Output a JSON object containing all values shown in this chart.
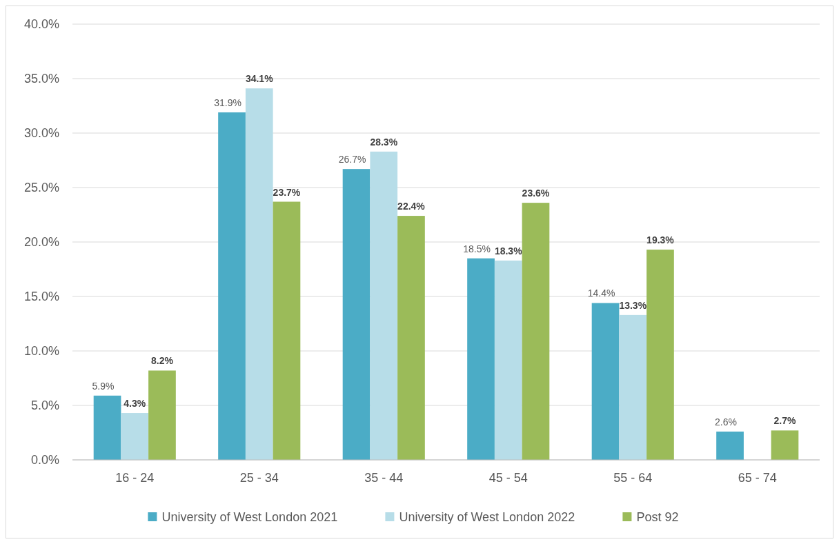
{
  "chart_data": {
    "type": "bar",
    "categories": [
      "16 - 24",
      "25 - 34",
      "35 - 44",
      "45 - 54",
      "55 - 64",
      "65 - 74"
    ],
    "series": [
      {
        "name": "University of West London 2021",
        "color": "#4bacc6",
        "values": [
          5.9,
          31.9,
          26.7,
          18.5,
          14.4,
          2.6
        ],
        "value_labels": [
          "5.9%",
          "31.9%",
          "26.7%",
          "18.5%",
          "14.4%",
          "2.6%"
        ]
      },
      {
        "name": "University of West London 2022",
        "color": "#b7dde8",
        "values": [
          4.3,
          34.1,
          28.3,
          18.3,
          13.3,
          null
        ],
        "value_labels": [
          "4.3%",
          "34.1%",
          "28.3%",
          "18.3%",
          "13.3%",
          null
        ]
      },
      {
        "name": "Post 92",
        "color": "#9bbb59",
        "values": [
          8.2,
          23.7,
          22.4,
          23.6,
          19.3,
          2.7
        ],
        "value_labels": [
          "8.2%",
          "23.7%",
          "22.4%",
          "23.6%",
          "19.3%",
          "2.7%"
        ]
      }
    ],
    "ylim": [
      0,
      40
    ],
    "yticks": [
      {
        "value": 0,
        "label": "0.0%"
      },
      {
        "value": 5,
        "label": "5.0%"
      },
      {
        "value": 10,
        "label": "10.0%"
      },
      {
        "value": 15,
        "label": "15.0%"
      },
      {
        "value": 20,
        "label": "20.0%"
      },
      {
        "value": 25,
        "label": "25.0%"
      },
      {
        "value": 30,
        "label": "30.0%"
      },
      {
        "value": 35,
        "label": "35.0%"
      },
      {
        "value": 40,
        "label": "40.0%"
      }
    ],
    "grid": "y",
    "legend": "bottom"
  }
}
